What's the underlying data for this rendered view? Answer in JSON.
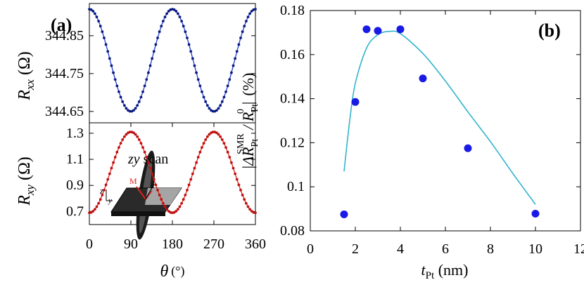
{
  "chart_data": [
    {
      "id": "a-top",
      "type": "line",
      "panel_label": "(a)",
      "ylabel": "Rxx (Ω)",
      "ylabel_main": "R",
      "ylabel_sub": "xx",
      "ylabel_unit": "(Ω)",
      "xlim": [
        0,
        360
      ],
      "ylim": [
        344.62,
        344.935
      ],
      "yticks": [
        344.65,
        344.75,
        344.85
      ],
      "yticklabels": [
        "344.65",
        "344.75",
        "344.85"
      ],
      "color": "#1f3fd0",
      "model": {
        "offset": 344.785,
        "amplitude": 0.135,
        "formula": "offset + amplitude*cos(2*theta)"
      },
      "series": [
        {
          "name": "Rxx",
          "x_start": 0,
          "x_end": 360,
          "x_step": 4
        }
      ]
    },
    {
      "id": "a-bottom",
      "type": "line",
      "ylabel": "Rxy (Ω)",
      "ylabel_main": "R",
      "ylabel_sub": "xy",
      "ylabel_unit": "(Ω)",
      "xlabel_main": "θ",
      "xlabel_unit": "(°)",
      "xlim": [
        0,
        360
      ],
      "ylim": [
        0.6,
        1.38
      ],
      "xticks": [
        0,
        90,
        180,
        270,
        360
      ],
      "xticklabels": [
        "0",
        "90",
        "180",
        "270",
        "360"
      ],
      "yticks": [
        0.7,
        0.9,
        1.1,
        1.3
      ],
      "yticklabels": [
        "0.7",
        "0.9",
        "1.1",
        "1.3"
      ],
      "color": "#e0201a",
      "model": {
        "offset": 1.0,
        "amplitude": 0.31,
        "formula": "offset - amplitude*cos(2*theta)"
      },
      "annotation_main": "zy",
      "annotation_rest": " scan",
      "inset_labels": {
        "m": "M",
        "z": "z",
        "y": "y"
      },
      "series": [
        {
          "name": "Rxy",
          "x_start": 0,
          "x_end": 360,
          "x_step": 4
        }
      ]
    },
    {
      "id": "b",
      "type": "scatter",
      "panel_label": "(b)",
      "xlabel_main": "t",
      "xlabel_sub": "Pt",
      "xlabel_unit": " (nm)",
      "ylabel": "|ΔR_Pt^SMR / R_Pt^0| (%)",
      "ylabel_parts": {
        "bar": "|",
        "delta": "ΔR",
        "sub": "Pt",
        "sup": "SMR",
        "slash": " / R",
        "sub2": "Pt",
        "sup2": "0",
        "unit": "(%)"
      },
      "xlim": [
        0,
        12
      ],
      "ylim": [
        0.08,
        0.18
      ],
      "xticks": [
        0,
        2,
        4,
        6,
        8,
        10,
        12
      ],
      "xticklabels": [
        "0",
        "2",
        "4",
        "6",
        "8",
        "10",
        "12"
      ],
      "yticks": [
        0.08,
        0.1,
        0.12,
        0.14,
        0.16,
        0.18
      ],
      "yticklabels": [
        "0.08",
        "0.1",
        "0.12",
        "0.14",
        "0.16",
        "0.18"
      ],
      "marker_color": "#1a1ae6",
      "fit_color": "#33b3cc",
      "points": [
        {
          "x": 1.5,
          "y": 0.0875
        },
        {
          "x": 2.0,
          "y": 0.1385
        },
        {
          "x": 2.5,
          "y": 0.1715
        },
        {
          "x": 3.0,
          "y": 0.1708
        },
        {
          "x": 4.0,
          "y": 0.1715
        },
        {
          "x": 5.0,
          "y": 0.1492
        },
        {
          "x": 7.0,
          "y": 0.1175
        },
        {
          "x": 10.0,
          "y": 0.0878
        }
      ],
      "fit": [
        {
          "x": 1.5,
          "y": 0.107
        },
        {
          "x": 1.75,
          "y": 0.13
        },
        {
          "x": 2.0,
          "y": 0.147
        },
        {
          "x": 2.5,
          "y": 0.163
        },
        {
          "x": 3.0,
          "y": 0.169
        },
        {
          "x": 3.5,
          "y": 0.1705
        },
        {
          "x": 4.0,
          "y": 0.1695
        },
        {
          "x": 5.0,
          "y": 0.1605
        },
        {
          "x": 6.0,
          "y": 0.148
        },
        {
          "x": 7.0,
          "y": 0.134
        },
        {
          "x": 8.0,
          "y": 0.1205
        },
        {
          "x": 9.0,
          "y": 0.106
        },
        {
          "x": 10.0,
          "y": 0.092
        }
      ]
    }
  ]
}
